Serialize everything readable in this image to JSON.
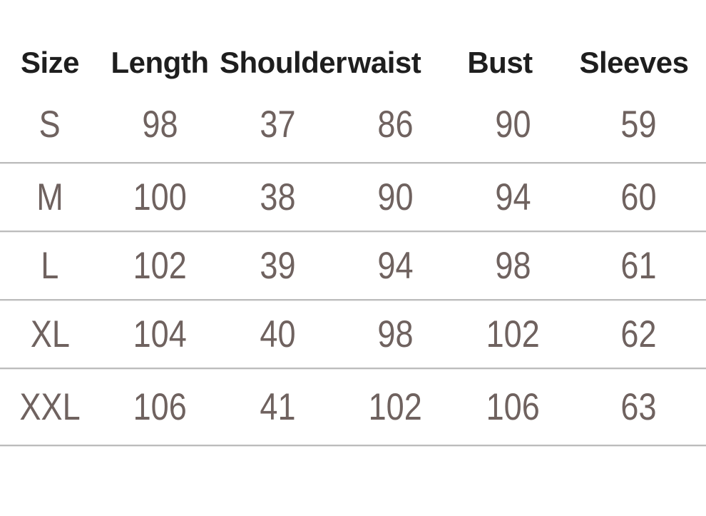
{
  "chart_data": {
    "type": "table",
    "columns": [
      "Size",
      "Length",
      "Shoulder",
      "waist",
      "Bust",
      "Sleeves"
    ],
    "rows": [
      [
        "S",
        "98",
        "37",
        "86",
        "90",
        "59"
      ],
      [
        "M",
        "100",
        "38",
        "90",
        "94",
        "60"
      ],
      [
        "L",
        "102",
        "39",
        "94",
        "98",
        "61"
      ],
      [
        "XL",
        "104",
        "40",
        "98",
        "102",
        "62"
      ],
      [
        "XXL",
        "106",
        "41",
        "102",
        "106",
        "63"
      ]
    ]
  },
  "colors": {
    "background": "#ffffff",
    "header_text": "#1e1e1e",
    "body_text": "#6f625f",
    "divider": "#bcbcbc",
    "divider_light": "#e9e9e9"
  }
}
